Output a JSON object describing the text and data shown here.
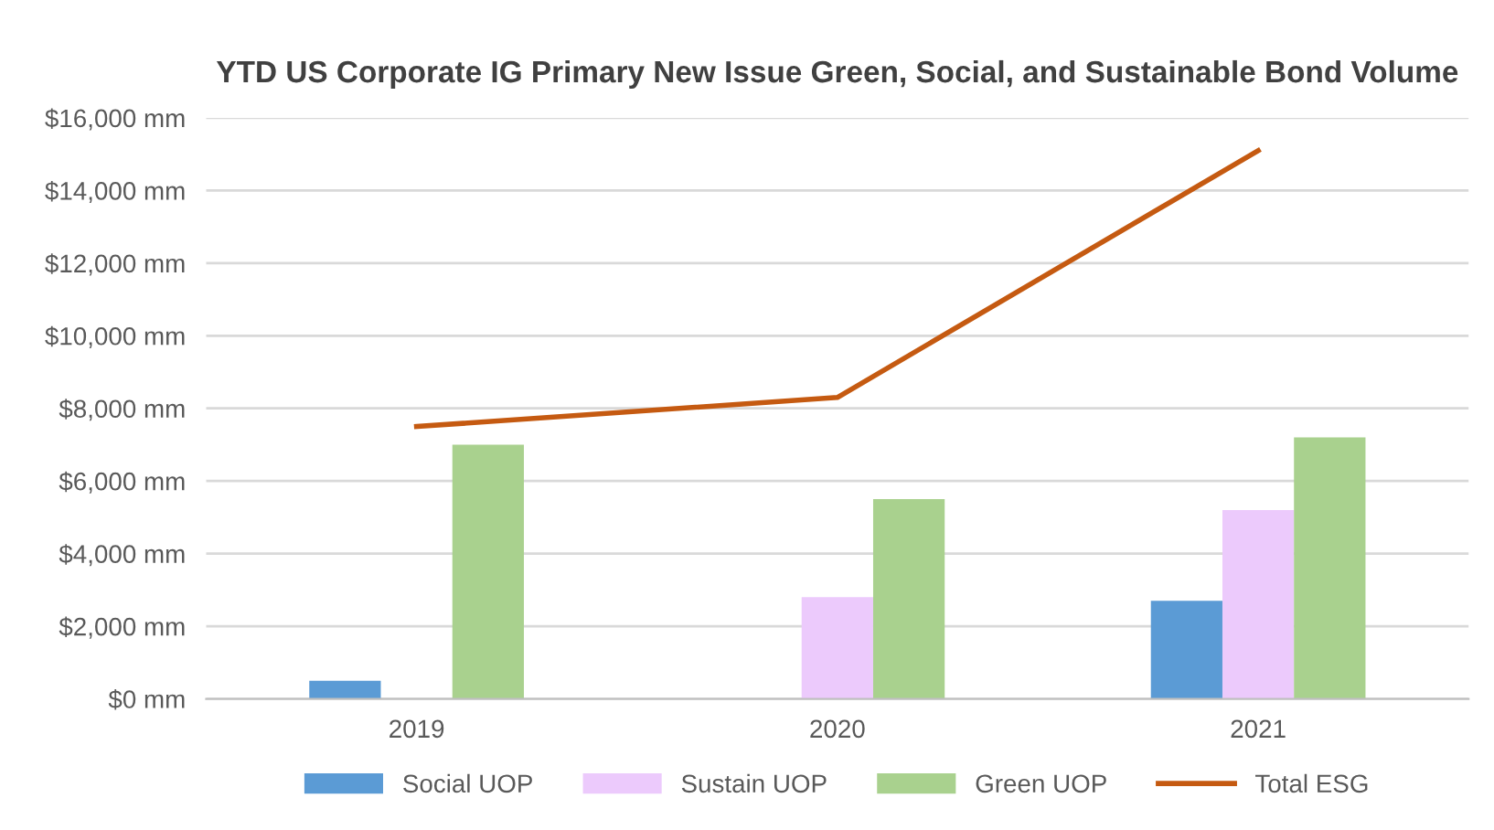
{
  "chart_data": {
    "type": "bar",
    "title": "YTD US Corporate IG Primary New Issue Green, Social, and Sustainable Bond Volume",
    "categories": [
      "2019",
      "2020",
      "2021"
    ],
    "series": [
      {
        "name": "Social UOP",
        "color": "#5b9bd5",
        "values": [
          500,
          null,
          2700
        ]
      },
      {
        "name": "Sustain UOP",
        "color": "#eccafc",
        "values": [
          null,
          2800,
          5200
        ]
      },
      {
        "name": "Green UOP",
        "color": "#a9d18e",
        "values": [
          7000,
          5500,
          7200
        ]
      },
      {
        "name": "Total ESG",
        "color": "#c55a11",
        "type": "line",
        "values": [
          7500,
          8300,
          15100
        ]
      }
    ],
    "ylim": [
      0,
      16000
    ],
    "yticks": [
      {
        "value": 0,
        "label": "$0 mm"
      },
      {
        "value": 2000,
        "label": "$2,000 mm"
      },
      {
        "value": 4000,
        "label": "$4,000 mm"
      },
      {
        "value": 6000,
        "label": "$6,000 mm"
      },
      {
        "value": 8000,
        "label": "$8,000 mm"
      },
      {
        "value": 10000,
        "label": "$10,000 mm"
      },
      {
        "value": 12000,
        "label": "$12,000 mm"
      },
      {
        "value": 14000,
        "label": "$14,000 mm"
      },
      {
        "value": 16000,
        "label": "$16,000 mm"
      }
    ],
    "grid": "y",
    "legend": "bottom"
  }
}
